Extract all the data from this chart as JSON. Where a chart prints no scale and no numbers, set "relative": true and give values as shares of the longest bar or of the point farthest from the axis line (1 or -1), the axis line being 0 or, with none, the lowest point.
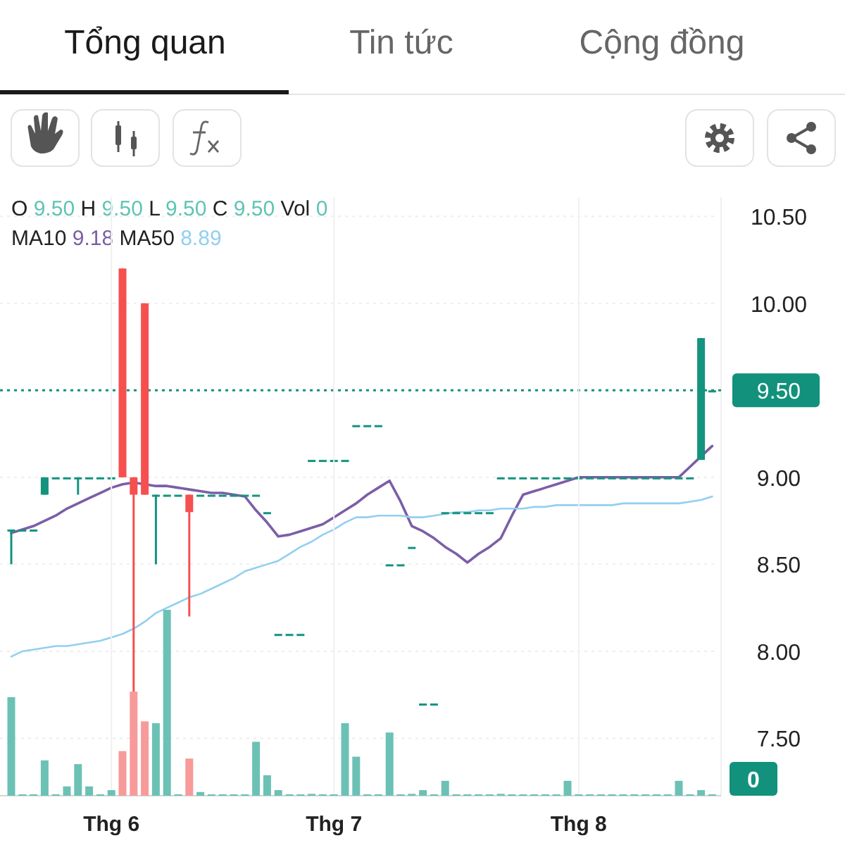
{
  "chart_data": [
    {
      "type": "candlestick",
      "annotations": [
        "Tổng quan",
        "Tin tức",
        "Cộng đồng",
        "O 9.50 H 9.50 L 9.50 C 9.50 Vol 0",
        "MA10 9.18 MA50 8.89"
      ],
      "categories": [
        null,
        null,
        null,
        null,
        null,
        null,
        null,
        null,
        null,
        null,
        null,
        null,
        null,
        null,
        null,
        null,
        null,
        null,
        null,
        null,
        null,
        null,
        null,
        null,
        null,
        null,
        null,
        null,
        null,
        null,
        null,
        null,
        null,
        null,
        null,
        null,
        null,
        null,
        null,
        null,
        null,
        null,
        null,
        null,
        null,
        null,
        null,
        null,
        null,
        null,
        null,
        null,
        null,
        null,
        null,
        null,
        null,
        null,
        null,
        null,
        null,
        null,
        null,
        null
      ],
      "ohlc": [
        [
          8.7,
          8.7,
          8.5,
          8.7
        ],
        [
          8.7,
          8.7,
          8.7,
          8.7
        ],
        [
          8.7,
          8.7,
          8.7,
          8.7
        ],
        [
          8.9,
          9.0,
          8.9,
          9.0
        ],
        [
          9.0,
          9.0,
          9.0,
          9.0
        ],
        [
          9.0,
          9.0,
          9.0,
          9.0
        ],
        [
          9.0,
          9.0,
          8.9,
          9.0
        ],
        [
          9.0,
          9.0,
          9.0,
          9.0
        ],
        [
          9.0,
          9.0,
          9.0,
          9.0
        ],
        [
          9.0,
          9.0,
          9.0,
          9.0
        ],
        [
          10.2,
          10.2,
          9.0,
          9.0
        ],
        [
          9.0,
          9.0,
          7.75,
          8.9
        ],
        [
          10.0,
          10.0,
          8.9,
          8.9
        ],
        [
          8.9,
          8.9,
          8.5,
          8.9
        ],
        [
          8.9,
          8.9,
          8.9,
          8.9
        ],
        [
          8.9,
          8.9,
          8.9,
          8.9
        ],
        [
          8.9,
          8.9,
          8.2,
          8.8
        ],
        [
          8.9,
          8.9,
          8.9,
          8.9
        ],
        [
          8.9,
          8.9,
          8.9,
          8.9
        ],
        [
          8.9,
          8.9,
          8.9,
          8.9
        ],
        [
          8.9,
          8.9,
          8.9,
          8.9
        ],
        [
          8.9,
          8.9,
          8.9,
          8.9
        ],
        [
          8.9,
          8.9,
          8.9,
          8.9
        ],
        [
          8.8,
          8.8,
          8.8,
          8.8
        ],
        [
          8.1,
          8.1,
          8.1,
          8.1
        ],
        [
          8.1,
          8.1,
          8.1,
          8.1
        ],
        [
          8.1,
          8.1,
          8.1,
          8.1
        ],
        [
          9.1,
          9.1,
          9.1,
          9.1
        ],
        [
          9.1,
          9.1,
          9.1,
          9.1
        ],
        [
          9.1,
          9.1,
          9.1,
          9.1
        ],
        [
          9.1,
          9.1,
          9.1,
          9.1
        ],
        [
          9.3,
          9.3,
          9.3,
          9.3
        ],
        [
          9.3,
          9.3,
          9.3,
          9.3
        ],
        [
          9.3,
          9.3,
          9.3,
          9.3
        ],
        [
          8.5,
          8.5,
          8.5,
          8.5
        ],
        [
          8.5,
          8.5,
          8.5,
          8.5
        ],
        [
          8.6,
          8.6,
          8.6,
          8.6
        ],
        [
          7.7,
          7.7,
          7.7,
          7.7
        ],
        [
          7.7,
          7.7,
          7.7,
          7.7
        ],
        [
          8.8,
          8.8,
          8.8,
          8.8
        ],
        [
          8.8,
          8.8,
          8.8,
          8.8
        ],
        [
          8.8,
          8.8,
          8.8,
          8.8
        ],
        [
          8.8,
          8.8,
          8.8,
          8.8
        ],
        [
          8.8,
          8.8,
          8.8,
          8.8
        ],
        [
          9.0,
          9.0,
          9.0,
          9.0
        ],
        [
          9.0,
          9.0,
          9.0,
          9.0
        ],
        [
          9.0,
          9.0,
          9.0,
          9.0
        ],
        [
          9.0,
          9.0,
          9.0,
          9.0
        ],
        [
          9.0,
          9.0,
          9.0,
          9.0
        ],
        [
          9.0,
          9.0,
          9.0,
          9.0
        ],
        [
          9.0,
          9.0,
          9.0,
          9.0
        ],
        [
          9.0,
          9.0,
          9.0,
          9.0
        ],
        [
          9.0,
          9.0,
          9.0,
          9.0
        ],
        [
          9.0,
          9.0,
          9.0,
          9.0
        ],
        [
          9.0,
          9.0,
          9.0,
          9.0
        ],
        [
          9.0,
          9.0,
          9.0,
          9.0
        ],
        [
          9.0,
          9.0,
          9.0,
          9.0
        ],
        [
          9.0,
          9.0,
          9.0,
          9.0
        ],
        [
          9.0,
          9.0,
          9.0,
          9.0
        ],
        [
          9.0,
          9.0,
          9.0,
          9.0
        ],
        [
          9.0,
          9.0,
          9.0,
          9.0
        ],
        [
          9.0,
          9.0,
          9.0,
          9.0
        ],
        [
          9.1,
          9.8,
          9.1,
          9.8
        ],
        [
          9.5,
          9.5,
          9.5,
          9.5
        ]
      ],
      "series": [
        {
          "type": "line",
          "color": "#7b5ea7",
          "values": [
            8.68,
            8.7,
            8.72,
            8.75,
            8.78,
            8.82,
            8.85,
            8.88,
            8.91,
            8.94,
            8.96,
            8.97,
            8.96,
            8.95,
            8.95,
            8.94,
            8.93,
            8.92,
            8.91,
            8.91,
            8.9,
            8.89,
            8.81,
            8.74,
            8.66,
            8.67,
            8.69,
            8.71,
            8.73,
            8.77,
            8.81,
            8.85,
            8.9,
            8.94,
            8.98,
            8.86,
            8.72,
            8.69,
            8.65,
            8.6,
            8.56,
            8.51,
            8.56,
            8.6,
            8.65,
            8.78,
            8.9,
            8.92,
            8.94,
            8.96,
            8.98,
            9.0,
            9.0,
            9.0,
            9.0,
            9.0,
            9.0,
            9.0,
            9.0,
            9.0,
            9.0,
            9.06,
            9.12,
            9.18
          ]
        },
        {
          "type": "line",
          "color": "#92cff0",
          "values": [
            7.97,
            8.0,
            8.01,
            8.02,
            8.03,
            8.03,
            8.04,
            8.05,
            8.06,
            8.08,
            8.1,
            8.13,
            8.17,
            8.22,
            8.25,
            8.28,
            8.31,
            8.33,
            8.36,
            8.39,
            8.42,
            8.46,
            8.48,
            8.5,
            8.52,
            8.56,
            8.6,
            8.63,
            8.67,
            8.7,
            8.74,
            8.77,
            8.77,
            8.78,
            8.78,
            8.78,
            8.77,
            8.77,
            8.78,
            8.79,
            8.8,
            8.8,
            8.81,
            8.81,
            8.82,
            8.82,
            8.82,
            8.83,
            8.83,
            8.84,
            8.84,
            8.84,
            8.84,
            8.84,
            8.84,
            8.85,
            8.85,
            8.85,
            8.85,
            8.85,
            8.85,
            8.86,
            8.87,
            8.89
          ]
        }
      ],
      "ylim": [
        7.17,
        10.61
      ],
      "yticks": [
        {
          "value": 7.5,
          "label": "7.50"
        },
        {
          "value": 8,
          "label": "8.00"
        },
        {
          "value": 8.5,
          "label": "8.50"
        },
        {
          "value": 9,
          "label": "9.00"
        },
        {
          "value": 10,
          "label": "10.00"
        },
        {
          "value": 10.5,
          "label": "10.50"
        }
      ],
      "ref_lines": [
        {
          "axis": "y",
          "value": 9.5,
          "label": "9.50",
          "color": "#12917c",
          "line_style": "dotted"
        }
      ],
      "grid": true,
      "tick_labels": "y"
    },
    {
      "type": "bar",
      "relative": true,
      "annotations": [
        "0"
      ],
      "categories": [
        null,
        null,
        null,
        null,
        null,
        null,
        null,
        null,
        null,
        "Thg 6",
        null,
        null,
        null,
        null,
        null,
        null,
        null,
        null,
        null,
        null,
        null,
        null,
        null,
        null,
        null,
        null,
        null,
        null,
        null,
        "Thg 7",
        null,
        null,
        null,
        null,
        null,
        null,
        null,
        null,
        null,
        null,
        null,
        null,
        null,
        null,
        null,
        null,
        null,
        null,
        null,
        null,
        null,
        "Thg 8",
        null,
        null,
        null,
        null,
        null,
        null,
        null,
        null,
        null,
        null,
        null,
        null
      ],
      "values": [
        0.53,
        0,
        0,
        0.19,
        0,
        0.05,
        0.17,
        0.05,
        0,
        0.03,
        0.24,
        0.56,
        0.4,
        0.39,
        1,
        0,
        0.2,
        0.02,
        0,
        0,
        0,
        0,
        0.29,
        0.11,
        0.03,
        0,
        0,
        0.01,
        0,
        0,
        0.39,
        0.21,
        0,
        0,
        0.34,
        0,
        0.01,
        0.03,
        0,
        0.08,
        0,
        0,
        0,
        0,
        0.01,
        0,
        0,
        0,
        0,
        0,
        0.08,
        0,
        0,
        0,
        0,
        0,
        0,
        0,
        0,
        0,
        0.08,
        0,
        0.03,
        0
      ],
      "colors": [
        "#6cc1b5",
        "#6cc1b5",
        "#6cc1b5",
        "#6cc1b5",
        "#6cc1b5",
        "#6cc1b5",
        "#6cc1b5",
        "#6cc1b5",
        "#6cc1b5",
        "#6cc1b5",
        "#f79a9a",
        "#f79a9a",
        "#f79a9a",
        "#6cc1b5",
        "#6cc1b5",
        "#6cc1b5",
        "#f79a9a",
        "#6cc1b5",
        "#6cc1b5",
        "#6cc1b5",
        "#6cc1b5",
        "#6cc1b5",
        "#6cc1b5",
        "#6cc1b5",
        "#6cc1b5",
        "#6cc1b5",
        "#6cc1b5",
        "#6cc1b5",
        "#6cc1b5",
        "#6cc1b5",
        "#6cc1b5",
        "#6cc1b5",
        "#6cc1b5",
        "#6cc1b5",
        "#6cc1b5",
        "#6cc1b5",
        "#6cc1b5",
        "#6cc1b5",
        "#6cc1b5",
        "#6cc1b5",
        "#6cc1b5",
        "#6cc1b5",
        "#6cc1b5",
        "#6cc1b5",
        "#6cc1b5",
        "#6cc1b5",
        "#6cc1b5",
        "#6cc1b5",
        "#6cc1b5",
        "#6cc1b5",
        "#6cc1b5",
        "#6cc1b5",
        "#6cc1b5",
        "#6cc1b5",
        "#6cc1b5",
        "#6cc1b5",
        "#6cc1b5",
        "#6cc1b5",
        "#6cc1b5",
        "#6cc1b5",
        "#6cc1b5",
        "#6cc1b5",
        "#6cc1b5",
        "#6cc1b5"
      ],
      "grid": "x",
      "tick_labels": "x"
    }
  ]
}
